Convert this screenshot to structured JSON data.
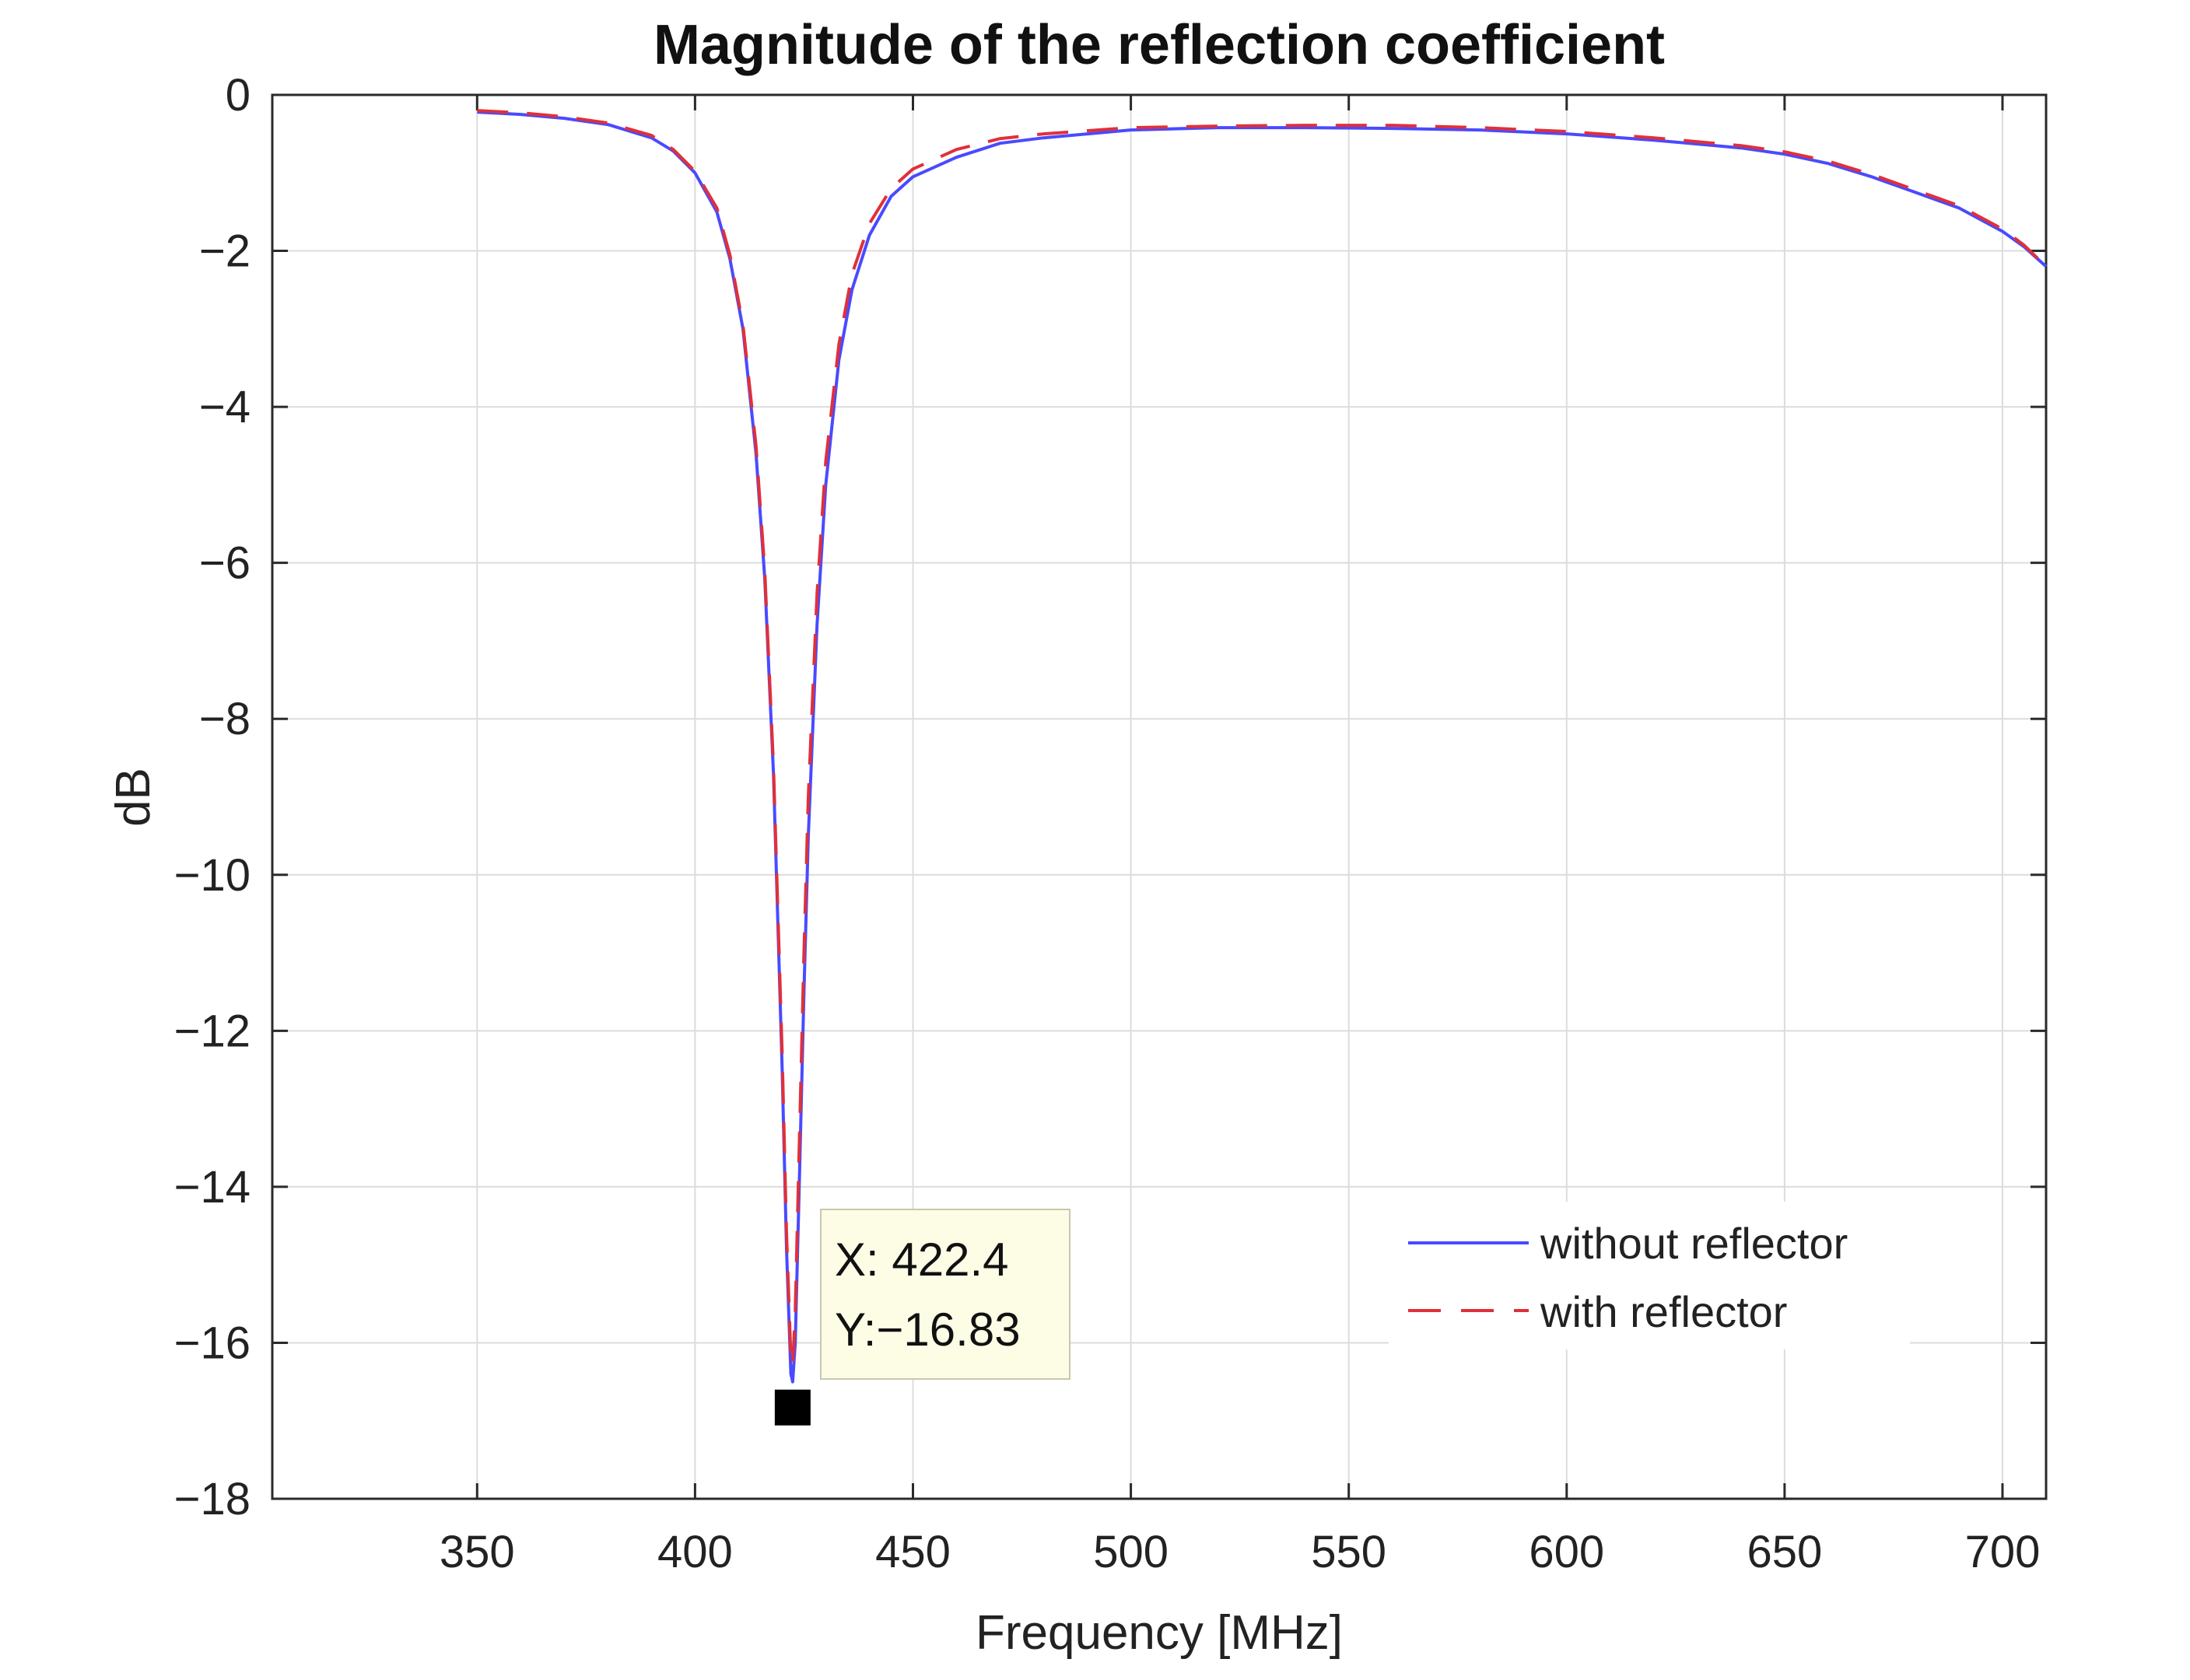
{
  "chart_data": {
    "type": "line",
    "title": "Magnitude of the reflection coefficient",
    "xlabel": "Frequency [MHz]",
    "ylabel": "dB",
    "xlim": [
      303,
      710
    ],
    "ylim": [
      -18,
      0
    ],
    "xticks": [
      350,
      400,
      450,
      500,
      550,
      600,
      650,
      700
    ],
    "yticks": [
      0,
      -2,
      -4,
      -6,
      -8,
      -10,
      -12,
      -14,
      -16,
      -18
    ],
    "xtick_labels": [
      "350",
      "400",
      "450",
      "500",
      "550",
      "600",
      "650",
      "700"
    ],
    "ytick_labels": [
      "0",
      "−2",
      "−4",
      "−6",
      "−8",
      "−10",
      "−12",
      "−14",
      "−16",
      "−18"
    ],
    "grid": true,
    "legend_position": "bottom-right",
    "series": [
      {
        "name": "without reflector",
        "color": "#4a4aff",
        "style": "solid",
        "x": [
          350,
          360,
          370,
          380,
          390,
          395,
          400,
          405,
          408,
          411,
          414,
          416,
          418,
          420,
          421,
          422,
          422.4,
          423,
          424,
          425,
          426,
          428,
          430,
          433,
          436,
          440,
          445,
          450,
          460,
          470,
          480,
          500,
          520,
          540,
          560,
          580,
          600,
          620,
          640,
          650,
          660,
          670,
          680,
          690,
          700,
          705,
          710
        ],
        "y": [
          -0.22,
          -0.25,
          -0.3,
          -0.38,
          -0.55,
          -0.72,
          -1.0,
          -1.5,
          -2.1,
          -3.0,
          -4.6,
          -6.2,
          -8.7,
          -12.5,
          -14.8,
          -16.4,
          -16.5,
          -16.0,
          -13.8,
          -11.5,
          -9.5,
          -6.8,
          -5.0,
          -3.4,
          -2.5,
          -1.8,
          -1.3,
          -1.05,
          -0.8,
          -0.62,
          -0.55,
          -0.45,
          -0.42,
          -0.42,
          -0.43,
          -0.45,
          -0.5,
          -0.58,
          -0.68,
          -0.76,
          -0.88,
          -1.05,
          -1.25,
          -1.45,
          -1.75,
          -1.95,
          -2.2
        ]
      },
      {
        "name": "with reflector",
        "color": "#e0303a",
        "style": "dashed",
        "x": [
          350,
          360,
          370,
          380,
          390,
          395,
          400,
          405,
          408,
          411,
          414,
          416,
          418,
          420,
          421,
          422,
          422.4,
          423,
          424,
          425,
          426,
          428,
          430,
          433,
          436,
          440,
          445,
          450,
          460,
          470,
          480,
          500,
          520,
          540,
          560,
          580,
          600,
          620,
          640,
          650,
          660,
          670,
          680,
          690,
          700,
          705,
          710
        ],
        "y": [
          -0.2,
          -0.23,
          -0.28,
          -0.36,
          -0.52,
          -0.7,
          -0.98,
          -1.45,
          -2.05,
          -2.95,
          -4.5,
          -6.1,
          -8.6,
          -12.3,
          -14.6,
          -16.2,
          -16.3,
          -15.6,
          -13.3,
          -11.0,
          -9.0,
          -6.4,
          -4.7,
          -3.2,
          -2.3,
          -1.65,
          -1.2,
          -0.95,
          -0.7,
          -0.56,
          -0.5,
          -0.42,
          -0.4,
          -0.39,
          -0.39,
          -0.42,
          -0.47,
          -0.55,
          -0.65,
          -0.73,
          -0.85,
          -1.02,
          -1.22,
          -1.42,
          -1.72,
          -1.93,
          -2.2
        ]
      }
    ],
    "datatip": {
      "x": 422.4,
      "y": -16.83,
      "x_label": "X: 422.4",
      "y_label": "Y:−16.83"
    }
  }
}
